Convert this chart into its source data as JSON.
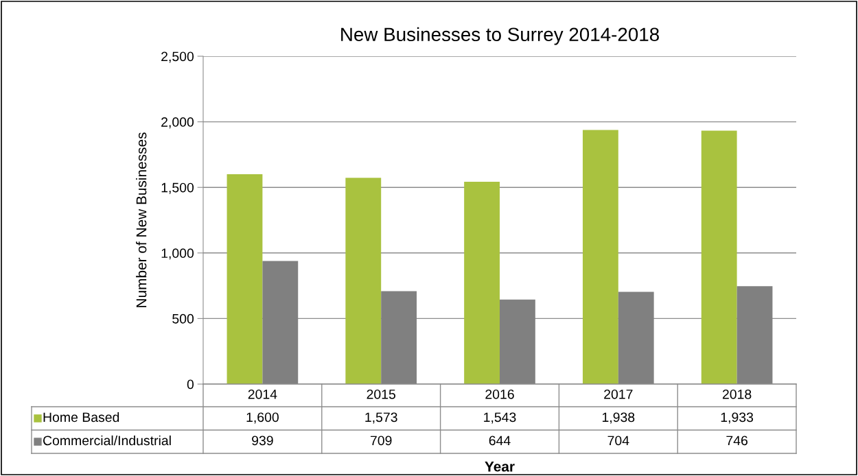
{
  "chart_data": {
    "type": "bar",
    "title": "New Businesses to Surrey 2014-2018",
    "xlabel": "Year",
    "ylabel": "Number of New Businesses",
    "categories": [
      "2014",
      "2015",
      "2016",
      "2017",
      "2018"
    ],
    "series": [
      {
        "name": "Home Based",
        "color": "#a9c23f",
        "values": [
          1600,
          1573,
          1543,
          1938,
          1933
        ],
        "value_labels": [
          "1,600",
          "1,573",
          "1,543",
          "1,938",
          "1,933"
        ]
      },
      {
        "name": "Commercial/Industrial",
        "color": "#808080",
        "values": [
          939,
          709,
          644,
          704,
          746
        ],
        "value_labels": [
          "939",
          "709",
          "644",
          "704",
          "746"
        ]
      }
    ],
    "ylim": [
      0,
      2500
    ],
    "yticks": [
      {
        "value": 0,
        "label": "0"
      },
      {
        "value": 500,
        "label": "500"
      },
      {
        "value": 1000,
        "label": "1,000"
      },
      {
        "value": 1500,
        "label": "1,500"
      },
      {
        "value": 2000,
        "label": "2,000"
      },
      {
        "value": 2500,
        "label": "2,500"
      }
    ],
    "grid": "y",
    "legend": "bottom left",
    "data_labels": true
  }
}
